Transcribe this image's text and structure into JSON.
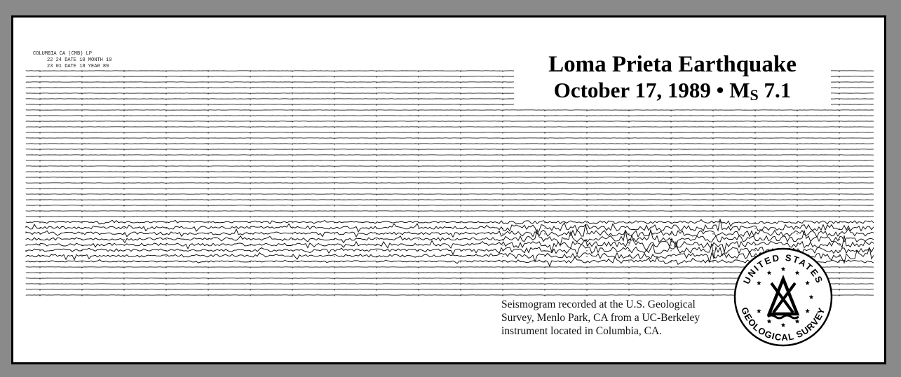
{
  "header_note": {
    "line1": "COLUMBIA CA (CMB) LP",
    "line2": "22 24 DATE 10 MONTH 10",
    "line3": "23 01 DATE 18 YEAR 89"
  },
  "title": {
    "line1": "Loma Prieta Earthquake",
    "date": "October 17, 1989",
    "separator": "•",
    "magnitude_prefix": "M",
    "magnitude_sub": "S",
    "magnitude_value": "7.1"
  },
  "caption": "Seismogram recorded at the U.S. Geological Survey, Menlo Park, CA from a UC-Berkeley instrument located in Columbia, CA.",
  "seal": {
    "top_text": "UNITED STATES",
    "bottom_text": "GEOLOGICAL SURVEY"
  },
  "colors": {
    "background": "#8a8a8a",
    "paper": "#ffffff",
    "ink": "#000000"
  }
}
